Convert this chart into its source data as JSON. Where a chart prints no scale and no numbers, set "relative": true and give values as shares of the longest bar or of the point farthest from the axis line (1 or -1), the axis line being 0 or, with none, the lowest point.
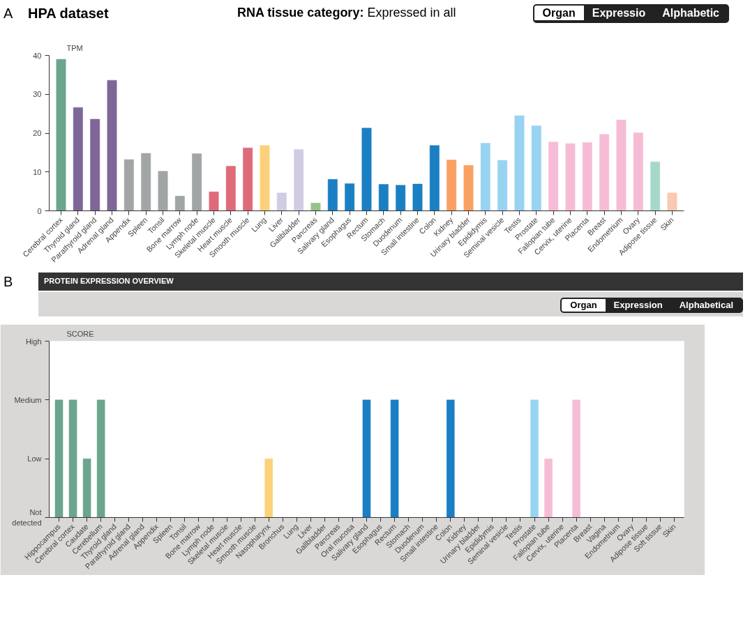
{
  "chart_data": [
    {
      "type": "bar",
      "title": "RNA tissue category: Expressed in all",
      "subtitle": "HPA dataset",
      "ylabel": "TPM",
      "annotations": [
        "A",
        "Organ",
        "Expressio",
        "Alphabetic"
      ],
      "categories": [
        "Cerebral cortex",
        "Thyroid gland",
        "Parathyroid gland",
        "Adrenal gland",
        "Appendix",
        "Spleen",
        "Tonsil",
        "Bone marrow",
        "Lymph node",
        "Skeletal muscle",
        "Heart muscle",
        "Smooth muscle",
        "Lung",
        "Liver",
        "Gallbladder",
        "Pancreas",
        "Salivary gland",
        "Esophagus",
        "Rectum",
        "Stomach",
        "Duodenum",
        "Small intestine",
        "Colon",
        "Kidney",
        "Urinary bladder",
        "Epididymis",
        "Seminal vesicle",
        "Testis",
        "Prostate",
        "Fallopian tube",
        "Cervix, uterine",
        "Placenta",
        "Breast",
        "Endometrium",
        "Ovary",
        "Adipose tissue",
        "Skin"
      ],
      "values": [
        39.0,
        26.6,
        23.6,
        33.6,
        13.2,
        14.8,
        10.2,
        3.8,
        14.7,
        4.9,
        11.5,
        16.2,
        16.8,
        4.6,
        15.8,
        2.0,
        8.1,
        7.0,
        21.3,
        6.8,
        6.6,
        6.9,
        16.8,
        13.1,
        11.7,
        17.4,
        13.0,
        24.5,
        21.9,
        17.7,
        17.3,
        17.6,
        19.7,
        23.4,
        20.1,
        12.6,
        4.6
      ],
      "colors": [
        "#6ba58d",
        "#7f6699",
        "#7f6699",
        "#7f6699",
        "#a1a5a6",
        "#a1a5a6",
        "#a1a5a6",
        "#a1a5a6",
        "#a1a5a6",
        "#de6a7a",
        "#de6a7a",
        "#de6a7a",
        "#fdd17b",
        "#d1cce3",
        "#d1cce3",
        "#96c38a",
        "#1b7fc3",
        "#1b7fc3",
        "#1b7fc3",
        "#1b7fc3",
        "#1b7fc3",
        "#1b7fc3",
        "#1b7fc3",
        "#f9a062",
        "#f9a062",
        "#98d3f2",
        "#98d3f2",
        "#98d3f2",
        "#98d3f2",
        "#f6bcd6",
        "#f6bcd6",
        "#f6bcd6",
        "#f6bcd6",
        "#f6bcd6",
        "#f6bcd6",
        "#a6d8c9",
        "#fbc8b0"
      ],
      "ylim": [
        0,
        40
      ],
      "yticks": [
        0,
        10,
        20,
        30,
        40
      ]
    },
    {
      "type": "bar",
      "title": "PROTEIN EXPRESSION OVERVIEW",
      "ylabel": "SCORE",
      "annotations": [
        "B",
        "Organ",
        "Expression",
        "Alphabetical",
        "Not detected",
        "Low",
        "Medium",
        "High"
      ],
      "relative": true,
      "categories": [
        "Hippocampus",
        "Cerebral cortex",
        "Caudate",
        "Cerebellum",
        "Thyroid gland",
        "Parathyroid gland",
        "Adrenal gland",
        "Appendix",
        "Spleen",
        "Tonsil",
        "Bone marrow",
        "Lymph node",
        "Skeletal muscle",
        "Heart muscle",
        "Smooth muscle",
        "Nasopharynx",
        "Bronchus",
        "Lung",
        "Liver",
        "Gallbladder",
        "Pancreas",
        "Oral mucosa",
        "Salivary gland",
        "Esophagus",
        "Rectum",
        "Stomach",
        "Duodenum",
        "Small intestine",
        "Colon",
        "Kidney",
        "Urinary bladder",
        "Epididymis",
        "Seminal vesicle",
        "Testis",
        "Prostate",
        "Fallopian tube",
        "Cervix, uterine",
        "Placenta",
        "Breast",
        "Vagina",
        "Endometrium",
        "Ovary",
        "Adipose tissue",
        "Soft tissue",
        "Skin"
      ],
      "values": [
        1,
        1,
        0.5,
        1,
        0,
        0,
        0,
        0,
        0,
        0,
        0,
        0,
        0,
        0,
        0,
        0.5,
        0,
        0,
        0,
        0,
        0,
        0,
        1,
        0,
        1,
        0,
        0,
        0,
        1,
        0,
        0,
        0,
        0,
        0,
        1,
        0.5,
        0,
        1,
        0,
        0,
        0,
        0,
        0,
        0,
        0
      ],
      "colors": [
        "#6ba58d",
        "#6ba58d",
        "#6ba58d",
        "#6ba58d",
        "#7f6699",
        "#7f6699",
        "#7f6699",
        "#a1a5a6",
        "#a1a5a6",
        "#a1a5a6",
        "#a1a5a6",
        "#a1a5a6",
        "#de6a7a",
        "#de6a7a",
        "#de6a7a",
        "#fdd17b",
        "#fdd17b",
        "#fdd17b",
        "#d1cce3",
        "#d1cce3",
        "#96c38a",
        "#1b7fc3",
        "#1b7fc3",
        "#1b7fc3",
        "#1b7fc3",
        "#1b7fc3",
        "#1b7fc3",
        "#1b7fc3",
        "#1b7fc3",
        "#f9a062",
        "#f9a062",
        "#98d3f2",
        "#98d3f2",
        "#98d3f2",
        "#98d3f2",
        "#f6bcd6",
        "#f6bcd6",
        "#f6bcd6",
        "#f6bcd6",
        "#f6bcd6",
        "#f6bcd6",
        "#f6bcd6",
        "#a6d8c9",
        "#a6d8c9",
        "#fbc8b0"
      ],
      "tick_labels": "x"
    }
  ]
}
